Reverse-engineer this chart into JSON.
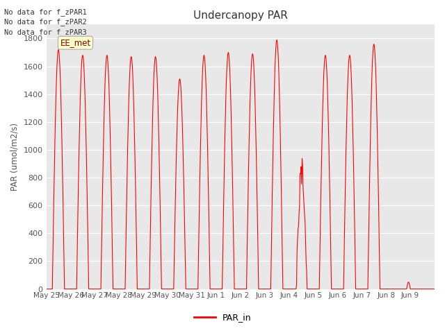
{
  "title": "Undercanopy PAR",
  "ylabel": "PAR (umol/m2/s)",
  "legend_label": "PAR_in",
  "line_color": "red",
  "bg_color": "#e8e8e8",
  "annotations": [
    "No data for f_zPAR1",
    "No data for f_zPAR2",
    "No data for f_zPAR3"
  ],
  "ee_met_label": "EE_met",
  "ylim": [
    0,
    1900
  ],
  "yticks": [
    0,
    200,
    400,
    600,
    800,
    1000,
    1200,
    1400,
    1600,
    1800
  ],
  "peak_heights": [
    1720,
    1680,
    1680,
    1670,
    1670,
    1510,
    1680,
    1700,
    1690,
    1790,
    870,
    1680,
    1680,
    1760,
    50,
    0
  ],
  "peak_labels": [
    "May 25",
    "May 26",
    "May 27",
    "May 28",
    "May 29",
    "May 30",
    "May 31",
    "Jun 1",
    "Jun 2",
    "Jun 3",
    "Jun 4",
    "Jun 5",
    "Jun 6",
    "Jun 7",
    "Jun 8",
    "Jun 9"
  ],
  "n_days": 16,
  "pts_per_day": 48
}
